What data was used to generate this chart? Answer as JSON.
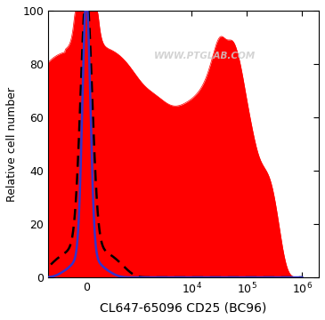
{
  "title": "",
  "xlabel": "CL647-65096 CD25 (BC96)",
  "ylabel": "Relative cell number",
  "ylim": [
    0,
    100
  ],
  "yticks": [
    0,
    20,
    40,
    60,
    80,
    100
  ],
  "watermark": "WWW.PTGLAB.COM",
  "background_color": "#ffffff",
  "red_fill_color": "#ff0000",
  "red_fill_alpha": 1.0,
  "blue_line_color": "#3333cc",
  "dashed_line_color": "#000000",
  "xlabel_fontsize": 10,
  "ylabel_fontsize": 9,
  "tick_fontsize": 9,
  "linthresh": 300,
  "linscale": 0.35
}
